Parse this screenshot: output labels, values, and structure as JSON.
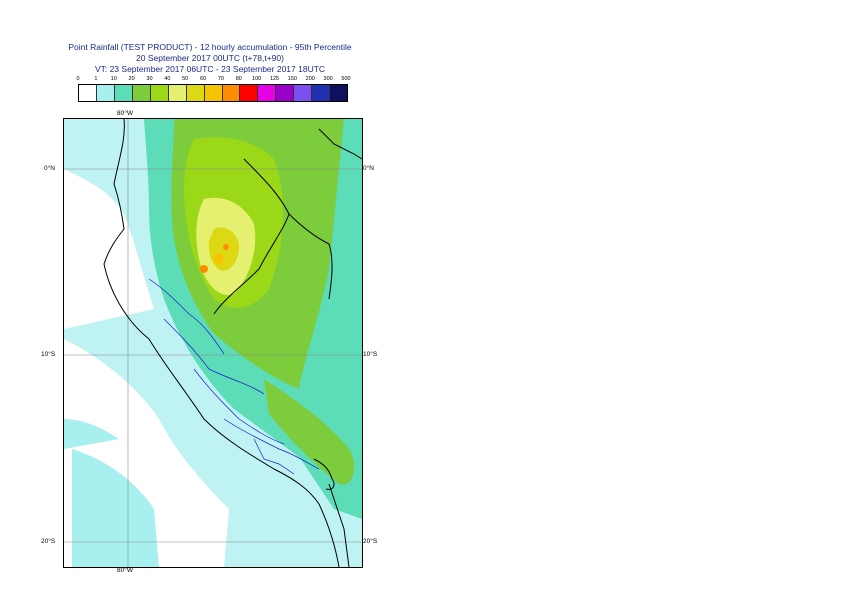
{
  "title": {
    "line1": "Point Rainfall (TEST PRODUCT) - 12 hourly accumulation - 95th Percentile",
    "line2": "20 September 2017 00UTC (t+78,t+90)",
    "line3": "VT: 23 September 2017 06UTC - 23 September 2017 18UTC"
  },
  "legend": {
    "thresholds": [
      "0",
      "1",
      "10",
      "20",
      "30",
      "40",
      "50",
      "60",
      "70",
      "80",
      "100",
      "125",
      "150",
      "200",
      "300",
      "500"
    ],
    "colors": [
      "#ffffff",
      "#a8f0f0",
      "#5ddcb8",
      "#7ccc3c",
      "#9ad818",
      "#e6f070",
      "#ddd814",
      "#f5c400",
      "#ff8c00",
      "#ff0000",
      "#e600e6",
      "#9b00c8",
      "#7a50f0",
      "#2030b0",
      "#101060"
    ]
  },
  "map": {
    "lat_labels": [
      "0°N",
      "10°S",
      "20°S"
    ],
    "lon_labels": [
      "80°W",
      "80°W"
    ]
  }
}
